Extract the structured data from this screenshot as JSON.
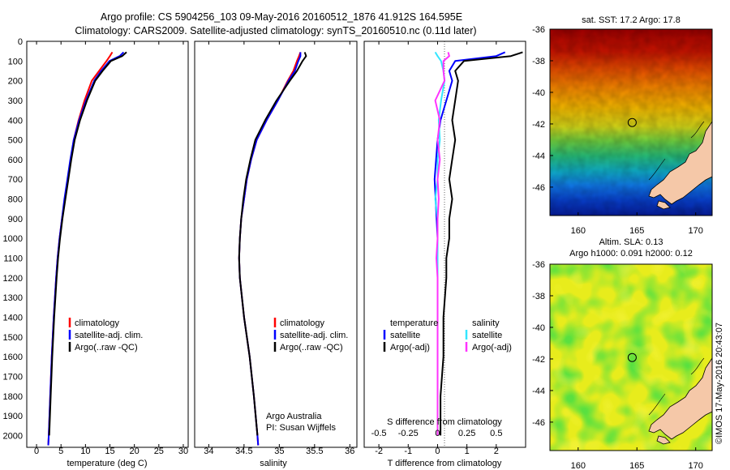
{
  "title": {
    "line1": "Argo profile: CS 5904256_103 09-May-2016 20160512_1876 41.912S 164.595E",
    "line2": "Climatology: CARS2009. Satellite-adjusted climatology: synTS_20160510.nc (0.11d later)"
  },
  "colors": {
    "climatology": "#ff0000",
    "satellite": "#0000ff",
    "argo": "#000000",
    "argo_salinity": "#ff33ff",
    "satellite_salinity": "#33e6ff",
    "land": "#f5c8a8"
  },
  "depth_axis": {
    "min": 0,
    "max": 2060,
    "ticks": [
      0,
      100,
      200,
      300,
      400,
      500,
      600,
      700,
      800,
      900,
      1000,
      1100,
      1200,
      1300,
      1400,
      1500,
      1600,
      1700,
      1800,
      1900,
      2000
    ]
  },
  "chart_data": [
    {
      "type": "line",
      "panel": "temperature",
      "xlabel": "temperature (deg C)",
      "xlim": [
        -2,
        31
      ],
      "xticks": [
        0,
        5,
        10,
        15,
        20,
        25,
        30
      ],
      "ylim": [
        0,
        2060
      ],
      "legend": [
        "climatology",
        "satellite-adj. clim.",
        "Argo(..raw -QC)"
      ],
      "series": [
        {
          "name": "climatology",
          "color": "#ff0000",
          "depth": [
            55,
            75,
            100,
            150,
            200,
            300,
            400,
            500,
            600,
            700,
            800,
            900,
            1000,
            1100,
            1200,
            1400,
            1600,
            1800,
            2000,
            2050
          ],
          "values": [
            15.5,
            15.0,
            14.3,
            12.8,
            11.3,
            9.8,
            8.6,
            7.6,
            7.0,
            6.4,
            5.8,
            5.2,
            4.7,
            4.3,
            4.0,
            3.5,
            3.1,
            2.8,
            2.5,
            2.4
          ]
        },
        {
          "name": "satellite-adj. clim.",
          "color": "#0000ff",
          "depth": [
            55,
            75,
            100,
            150,
            200,
            300,
            400,
            500,
            600,
            700,
            800,
            900,
            1000,
            1100,
            1200,
            1400,
            1600,
            1800,
            2000,
            2050
          ],
          "values": [
            17.8,
            17.0,
            14.9,
            13.2,
            11.8,
            10.1,
            8.7,
            7.6,
            6.9,
            6.3,
            5.7,
            5.2,
            4.7,
            4.3,
            4.0,
            3.5,
            3.1,
            2.8,
            2.5,
            2.4
          ]
        },
        {
          "name": "Argo(..raw -QC)",
          "color": "#000000",
          "depth": [
            55,
            75,
            100,
            150,
            200,
            300,
            400,
            500,
            600,
            700,
            800,
            900,
            1000,
            1100,
            1200,
            1400,
            1600,
            1800,
            2000
          ],
          "values": [
            18.4,
            17.5,
            15.2,
            13.5,
            12.0,
            10.3,
            8.9,
            7.8,
            7.1,
            6.5,
            5.9,
            5.3,
            4.8,
            4.4,
            4.1,
            3.6,
            3.2,
            2.9,
            2.6
          ]
        }
      ]
    },
    {
      "type": "line",
      "panel": "salinity",
      "xlabel": "salinity",
      "xlim": [
        33.8,
        36.1
      ],
      "xticks": [
        34,
        34.5,
        35,
        35.5,
        36
      ],
      "ylim": [
        0,
        2060
      ],
      "legend": [
        "climatology",
        "satellite-adj. clim.",
        "Argo(..raw -QC)"
      ],
      "annotation": [
        "Argo Australia",
        "PI: Susan Wijffels"
      ],
      "series": [
        {
          "name": "climatology",
          "color": "#ff0000",
          "depth": [
            55,
            75,
            100,
            150,
            200,
            300,
            400,
            500,
            600,
            700,
            800,
            900,
            1000,
            1100,
            1200,
            1400,
            1600,
            1800,
            2000,
            2050
          ],
          "values": [
            35.3,
            35.28,
            35.25,
            35.2,
            35.12,
            34.98,
            34.82,
            34.68,
            34.6,
            34.54,
            34.5,
            34.46,
            34.44,
            34.43,
            34.44,
            34.5,
            34.58,
            34.64,
            34.69,
            34.7
          ]
        },
        {
          "name": "satellite-adj. clim.",
          "color": "#0000ff",
          "depth": [
            55,
            75,
            100,
            150,
            200,
            300,
            400,
            500,
            600,
            700,
            800,
            900,
            1000,
            1100,
            1200,
            1400,
            1600,
            1800,
            2000,
            2050
          ],
          "values": [
            35.3,
            35.3,
            35.27,
            35.22,
            35.13,
            34.98,
            34.82,
            34.68,
            34.6,
            34.54,
            34.5,
            34.46,
            34.44,
            34.43,
            34.44,
            34.5,
            34.58,
            34.64,
            34.69,
            34.7
          ]
        },
        {
          "name": "Argo(..raw -QC)",
          "color": "#000000",
          "depth": [
            55,
            75,
            100,
            150,
            200,
            300,
            400,
            500,
            600,
            700,
            800,
            900,
            1000,
            1100,
            1200,
            1400,
            1600,
            1800,
            2000
          ],
          "values": [
            35.36,
            35.38,
            35.33,
            35.25,
            35.15,
            34.96,
            34.8,
            34.66,
            34.59,
            34.53,
            34.49,
            34.46,
            34.44,
            34.43,
            34.44,
            34.5,
            34.58,
            34.64,
            34.69
          ]
        }
      ]
    },
    {
      "type": "line",
      "panel": "difference",
      "xlabel": "T difference from climatology",
      "x2label": "S difference from climatology",
      "xlim": [
        -2.5,
        3.0
      ],
      "xticks": [
        -2,
        -1,
        0,
        1,
        2
      ],
      "xticks2": [
        "-0.5",
        "-0.25",
        "0",
        "0.25",
        "0.5"
      ],
      "ylim": [
        0,
        2060
      ],
      "legend_titles": [
        "temperature",
        "salinity"
      ],
      "legend": [
        "satellite",
        "Argo(-adj)",
        "satellite",
        "Argo(-adj)"
      ],
      "series": [
        {
          "name": "temperature satellite",
          "color": "#0000ff",
          "depth": [
            55,
            75,
            100,
            150,
            200,
            300,
            400,
            500,
            700,
            1000,
            1200,
            1400,
            1600,
            1800,
            2000
          ],
          "values": [
            2.3,
            2.0,
            0.6,
            0.4,
            0.5,
            0.3,
            0.1,
            0.0,
            -0.1,
            0.0,
            0.0,
            0.0,
            0.0,
            0.0,
            0.0
          ]
        },
        {
          "name": "temperature Argo(-adj)",
          "color": "#000000",
          "depth": [
            55,
            75,
            100,
            150,
            200,
            300,
            400,
            500,
            600,
            700,
            800,
            900,
            1000,
            1100,
            1200,
            1400,
            1600,
            1800,
            2000
          ],
          "values": [
            2.9,
            2.5,
            0.9,
            0.6,
            0.7,
            0.6,
            0.5,
            0.6,
            0.5,
            0.4,
            0.5,
            0.4,
            0.4,
            0.3,
            0.3,
            0.2,
            0.2,
            0.1,
            0.1
          ]
        },
        {
          "name": "salinity satellite",
          "color": "#33e6ff",
          "depth": [
            55,
            75,
            100,
            150,
            200,
            300,
            400,
            500,
            600,
            700,
            800,
            900,
            1000,
            1200,
            1400,
            1600,
            1800,
            2000
          ],
          "values": [
            -0.02,
            0.0,
            0.03,
            0.05,
            0.06,
            0.03,
            0.01,
            0.02,
            0.0,
            0.0,
            -0.02,
            0.0,
            0.0,
            0.0,
            0.0,
            0.0,
            0.0,
            0.0
          ]
        },
        {
          "name": "salinity Argo(-adj)",
          "color": "#ff33ff",
          "depth": [
            55,
            75,
            100,
            150,
            200,
            300,
            400,
            500,
            600,
            700,
            800,
            900,
            1000,
            1100,
            1200,
            1400,
            1600,
            1800,
            2000
          ],
          "values": [
            0.09,
            0.1,
            0.05,
            0.05,
            0.06,
            -0.02,
            0.02,
            0.0,
            0.02,
            0.0,
            0.01,
            0.0,
            0.0,
            -0.01,
            0.0,
            0.0,
            0.0,
            0.0,
            0.0
          ]
        }
      ]
    },
    {
      "type": "heatmap",
      "panel": "sst_map",
      "title": "sat. SST: 17.2  Argo: 17.8",
      "xlim": [
        157.6,
        171.4
      ],
      "ylim": [
        -47.8,
        -36
      ],
      "xticks": [
        160,
        165,
        170
      ],
      "yticks": [
        -36,
        -38,
        -40,
        -42,
        -44,
        -46
      ],
      "argo_lon": 164.595,
      "argo_lat": -41.912
    },
    {
      "type": "heatmap",
      "panel": "sla_map",
      "title": [
        "Altim. SLA: 0.13",
        "Argo h1000: 0.091 h2000: 0.12"
      ],
      "xlim": [
        157.6,
        171.4
      ],
      "ylim": [
        -47.8,
        -36
      ],
      "xticks": [
        160,
        165,
        170
      ],
      "yticks": [
        -36,
        -38,
        -40,
        -42,
        -44,
        -46
      ],
      "argo_lon": 164.595,
      "argo_lat": -41.912
    }
  ],
  "footer": "©IMOS 17-May-2016 20:43:07"
}
